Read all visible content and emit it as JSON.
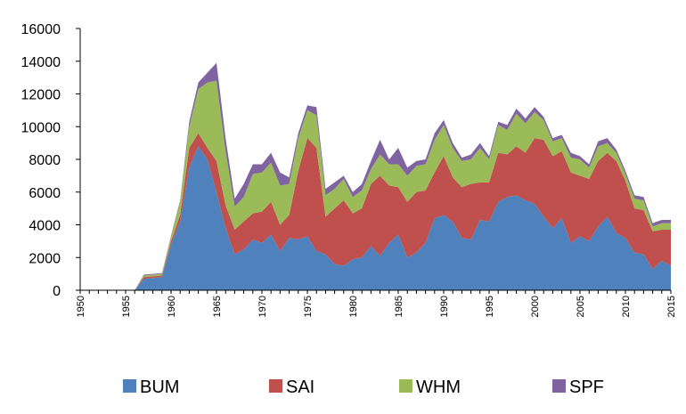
{
  "chart_data": {
    "type": "area",
    "stacked": true,
    "x": [
      1950,
      1951,
      1952,
      1953,
      1954,
      1955,
      1956,
      1957,
      1958,
      1959,
      1960,
      1961,
      1962,
      1963,
      1964,
      1965,
      1966,
      1967,
      1968,
      1969,
      1970,
      1971,
      1972,
      1973,
      1974,
      1975,
      1976,
      1977,
      1978,
      1979,
      1980,
      1981,
      1982,
      1983,
      1984,
      1985,
      1986,
      1987,
      1988,
      1989,
      1990,
      1991,
      1992,
      1993,
      1994,
      1995,
      1996,
      1997,
      1998,
      1999,
      2000,
      2001,
      2002,
      2003,
      2004,
      2005,
      2006,
      2007,
      2008,
      2009,
      2010,
      2011,
      2012,
      2013,
      2014,
      2015
    ],
    "xlim": [
      1950,
      2015
    ],
    "ylim": [
      0,
      16000
    ],
    "yticks": [
      0,
      2000,
      4000,
      6000,
      8000,
      10000,
      12000,
      14000,
      16000
    ],
    "ytick_labels": [
      "0",
      "2000",
      "4000",
      "6000",
      "8000",
      "10000",
      "12000",
      "14000",
      "16000"
    ],
    "xticks": [
      1950,
      1955,
      1960,
      1965,
      1970,
      1975,
      1980,
      1985,
      1990,
      1995,
      2000,
      2005,
      2010,
      2015
    ],
    "xtick_labels": [
      "1950",
      "1955",
      "1960",
      "1965",
      "1970",
      "1975",
      "1980",
      "1985",
      "1990",
      "1995",
      "2000",
      "2005",
      "2010",
      "2015"
    ],
    "legend_position": "bottom",
    "grid": false,
    "series": [
      {
        "name": "BUM",
        "color": "#4F81BD",
        "values": [
          0,
          0,
          0,
          0,
          0,
          0,
          0,
          700,
          750,
          800,
          2800,
          4200,
          7500,
          8800,
          8000,
          6000,
          3800,
          2200,
          2500,
          3100,
          2900,
          3400,
          2400,
          3200,
          3100,
          3300,
          2400,
          2200,
          1600,
          1500,
          1900,
          2000,
          2700,
          2100,
          2900,
          3400,
          2000,
          2300,
          2900,
          4400,
          4600,
          4200,
          3200,
          3100,
          4300,
          4200,
          5400,
          5700,
          5800,
          5500,
          5300,
          4500,
          3800,
          4400,
          2900,
          3300,
          3000,
          3900,
          4500,
          3500,
          3200,
          2300,
          2200,
          1300,
          1800,
          1500
        ]
      },
      {
        "name": "SAI",
        "color": "#C0504D",
        "values": [
          0,
          0,
          0,
          0,
          0,
          0,
          0,
          100,
          100,
          100,
          200,
          400,
          1200,
          800,
          700,
          1900,
          1400,
          1500,
          1700,
          1600,
          1900,
          2000,
          1600,
          1400,
          4200,
          6000,
          6300,
          2300,
          3400,
          4000,
          2800,
          3000,
          3800,
          4900,
          3500,
          2900,
          3400,
          3700,
          3200,
          2800,
          3600,
          2700,
          3100,
          3400,
          2300,
          2400,
          3000,
          2600,
          3000,
          2900,
          4000,
          4700,
          4400,
          4100,
          4300,
          3700,
          3800,
          4000,
          3900,
          4400,
          3500,
          2700,
          2700,
          2300,
          1900,
          2200
        ]
      },
      {
        "name": "WHM",
        "color": "#9BBB59",
        "values": [
          0,
          0,
          0,
          0,
          0,
          0,
          0,
          100,
          100,
          100,
          300,
          800,
          1300,
          2700,
          4000,
          4900,
          3300,
          1400,
          1500,
          2400,
          2400,
          2400,
          2400,
          1900,
          2000,
          1700,
          2000,
          1300,
          1200,
          1300,
          1000,
          1100,
          900,
          1300,
          1300,
          1400,
          1600,
          1600,
          1600,
          2000,
          1900,
          1800,
          1600,
          1500,
          2100,
          1400,
          1700,
          1500,
          2000,
          1800,
          1600,
          1200,
          900,
          800,
          900,
          1000,
          700,
          900,
          600,
          500,
          400,
          600,
          600,
          300,
          400,
          400
        ]
      },
      {
        "name": "SPF",
        "color": "#8064A2",
        "values": [
          0,
          0,
          0,
          0,
          0,
          0,
          0,
          50,
          50,
          50,
          50,
          100,
          300,
          400,
          600,
          1100,
          800,
          500,
          800,
          600,
          500,
          600,
          800,
          400,
          300,
          300,
          500,
          400,
          400,
          200,
          300,
          400,
          500,
          900,
          300,
          1000,
          500,
          300,
          300,
          400,
          300,
          300,
          200,
          300,
          300,
          200,
          200,
          300,
          300,
          300,
          300,
          200,
          200,
          200,
          300,
          200,
          200,
          300,
          300,
          200,
          200,
          200,
          200,
          200,
          200,
          200
        ]
      }
    ]
  }
}
